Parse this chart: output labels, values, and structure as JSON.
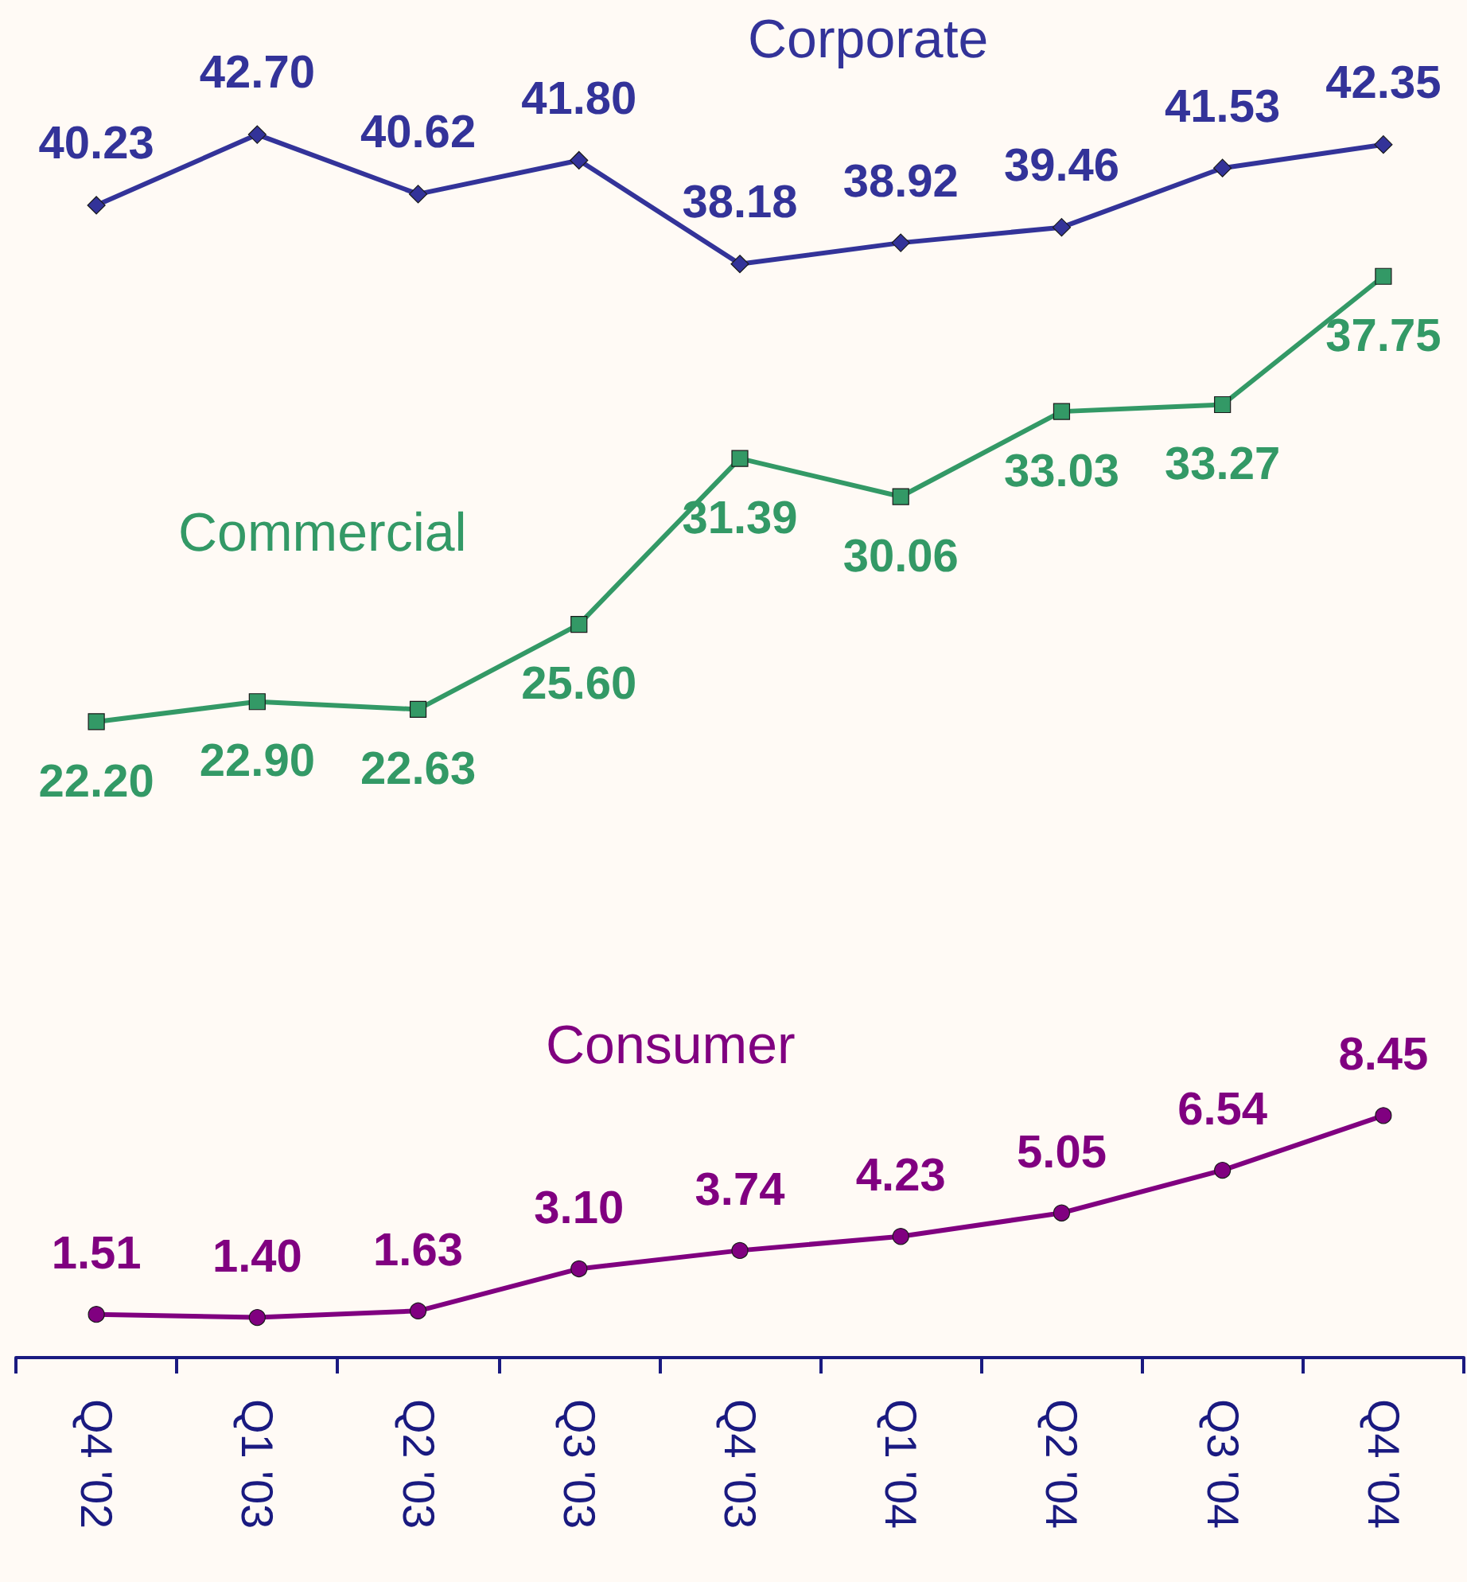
{
  "chart_data": {
    "type": "line",
    "categories": [
      "Q4 '02",
      "Q1 '03",
      "Q2 '03",
      "Q3 '03",
      "Q4 '03",
      "Q1 '04",
      "Q2 '04",
      "Q3 '04",
      "Q4 '04"
    ],
    "series": [
      {
        "name": "Corporate",
        "color": "#333399",
        "marker": "diamond",
        "values": [
          40.23,
          42.7,
          40.62,
          41.8,
          38.18,
          38.92,
          39.46,
          41.53,
          42.35
        ],
        "value_labels": [
          "40.23",
          "42.70",
          "40.62",
          "41.80",
          "38.18",
          "38.92",
          "39.46",
          "41.53",
          "42.35"
        ]
      },
      {
        "name": "Commercial",
        "color": "#339966",
        "marker": "square",
        "values": [
          22.2,
          22.9,
          22.63,
          25.6,
          31.39,
          30.06,
          33.03,
          33.27,
          37.75
        ],
        "value_labels": [
          "22.20",
          "22.90",
          "22.63",
          "25.60",
          "31.39",
          "30.06",
          "33.03",
          "33.27",
          "37.75"
        ]
      },
      {
        "name": "Consumer",
        "color": "#800080",
        "marker": "circle",
        "values": [
          1.51,
          1.4,
          1.63,
          3.1,
          3.74,
          4.23,
          5.05,
          6.54,
          8.45
        ],
        "value_labels": [
          "1.51",
          "1.40",
          "1.63",
          "3.10",
          "3.74",
          "4.23",
          "5.05",
          "6.54",
          "8.45"
        ]
      }
    ],
    "grid": false,
    "legend": false
  }
}
